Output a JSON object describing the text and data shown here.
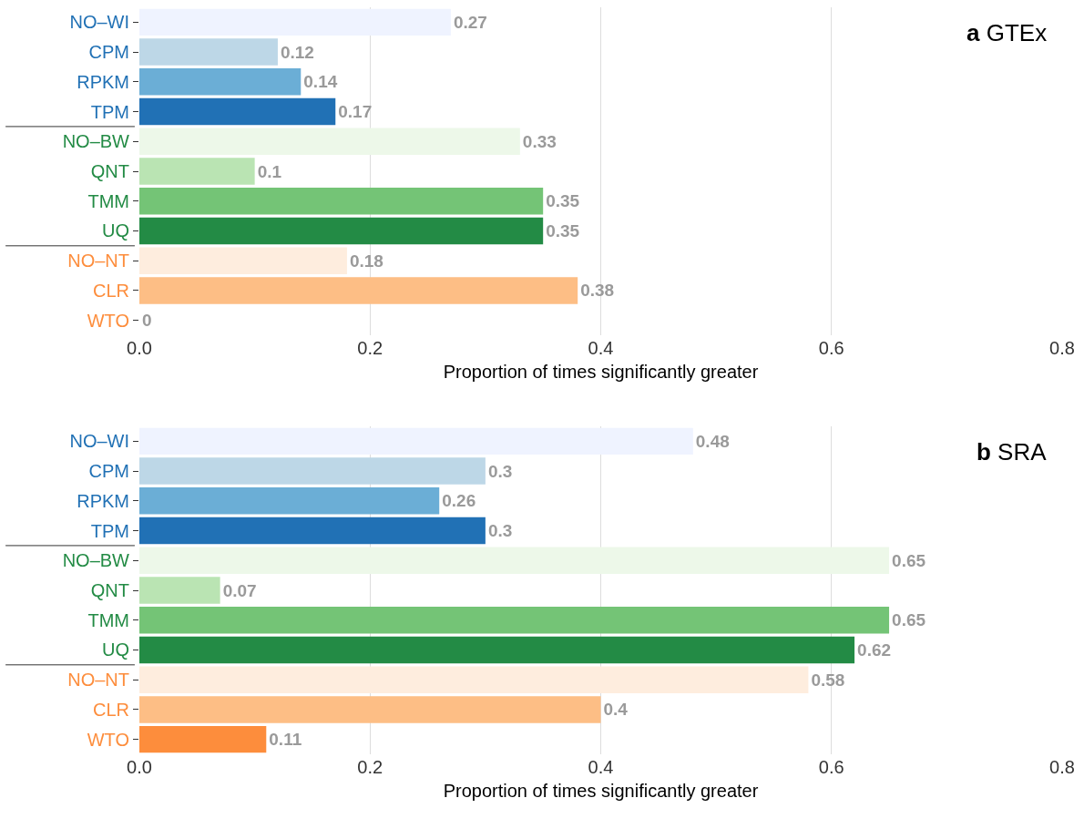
{
  "chart_data": [
    {
      "type": "bar",
      "orientation": "horizontal",
      "title": "a GTEx",
      "xlabel": "Proportion of times significantly greater",
      "categories": [
        "NO–WI",
        "CPM",
        "RPKM",
        "TPM",
        "NO–BW",
        "QNT",
        "TMM",
        "UQ",
        "NO–NT",
        "CLR",
        "WTO"
      ],
      "series": [
        {
          "color": "#2171b5",
          "colors": [
            "#eff3ff",
            "#bdd7e7",
            "#6baed6",
            "#2171b5",
            null,
            null,
            null,
            null,
            null,
            null,
            null
          ],
          "values": [
            0.27,
            0.12,
            0.14,
            0.17,
            null,
            null,
            null,
            null,
            null,
            null,
            null
          ]
        },
        {
          "color": "#238b45",
          "colors": [
            null,
            null,
            null,
            null,
            "#edf8e9",
            "#bae4b3",
            "#74c476",
            "#238b45",
            null,
            null,
            null
          ],
          "values": [
            null,
            null,
            null,
            null,
            0.33,
            0.1,
            0.35,
            0.35,
            null,
            null,
            null
          ]
        },
        {
          "color": "#fd8d3c",
          "colors": [
            null,
            null,
            null,
            null,
            null,
            null,
            null,
            null,
            "#feedde",
            "#fdbe85",
            "#fd8d3c"
          ],
          "values": [
            null,
            null,
            null,
            null,
            null,
            null,
            null,
            null,
            0.18,
            0.38,
            0
          ]
        }
      ],
      "xlim": [
        0,
        0.8
      ],
      "xticks": [
        {
          "value": 0,
          "label": "0.0"
        },
        0.2,
        0.4,
        0.6,
        0.8
      ],
      "grid": "x",
      "data_labels": true
    },
    {
      "type": "bar",
      "orientation": "horizontal",
      "title": "b SRA",
      "xlabel": "Proportion of times significantly greater",
      "categories": [
        "NO–WI",
        "CPM",
        "RPKM",
        "TPM",
        "NO–BW",
        "QNT",
        "TMM",
        "UQ",
        "NO–NT",
        "CLR",
        "WTO"
      ],
      "series": [
        {
          "color": "#2171b5",
          "colors": [
            "#eff3ff",
            "#bdd7e7",
            "#6baed6",
            "#2171b5",
            null,
            null,
            null,
            null,
            null,
            null,
            null
          ],
          "values": [
            0.48,
            0.3,
            0.26,
            0.3,
            null,
            null,
            null,
            null,
            null,
            null,
            null
          ]
        },
        {
          "color": "#238b45",
          "colors": [
            null,
            null,
            null,
            null,
            "#edf8e9",
            "#bae4b3",
            "#74c476",
            "#238b45",
            null,
            null,
            null
          ],
          "values": [
            null,
            null,
            null,
            null,
            0.65,
            0.07,
            0.65,
            0.62,
            null,
            null,
            null
          ]
        },
        {
          "color": "#fd8d3c",
          "colors": [
            null,
            null,
            null,
            null,
            null,
            null,
            null,
            null,
            "#feedde",
            "#fdbe85",
            "#fd8d3c"
          ],
          "values": [
            null,
            null,
            null,
            null,
            null,
            null,
            null,
            null,
            0.58,
            0.4,
            0.11
          ]
        }
      ],
      "xlim": [
        0,
        0.8
      ],
      "xticks": [
        {
          "value": 0,
          "label": "0.0"
        },
        0.2,
        0.4,
        0.6,
        0.8
      ],
      "grid": "x",
      "data_labels": true
    }
  ]
}
